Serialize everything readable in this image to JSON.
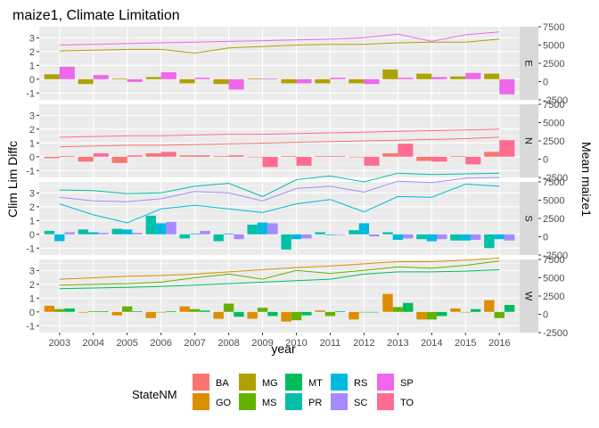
{
  "chart_data": {
    "type": "bar+line facet",
    "title": "maize1, Climate Limitation",
    "xlabel": "year",
    "ylabel_left": "Clim Lim Diffc",
    "ylabel_right": "Mean maize1",
    "x": [
      2003,
      2004,
      2005,
      2006,
      2007,
      2008,
      2009,
      2010,
      2011,
      2012,
      2013,
      2014,
      2015,
      2016
    ],
    "x_ticks": [
      "2003",
      "2004",
      "2005",
      "2006",
      "2007",
      "2008",
      "2009",
      "2010",
      "2011",
      "2012",
      "2013",
      "2014",
      "2015",
      "2016"
    ],
    "ylim_left": [
      -1.5,
      3.8
    ],
    "y_ticks_left": [
      "3",
      "2",
      "1",
      "0",
      "-1"
    ],
    "ylim_right": [
      -2500,
      7500
    ],
    "y_ticks_right": [
      "7500",
      "5000",
      "2500",
      "0",
      "-2500"
    ],
    "legend_title": "StateNM",
    "legend_position": "bottom",
    "states": [
      {
        "name": "BA",
        "color": "#F8766D"
      },
      {
        "name": "GO",
        "color": "#DB8E00"
      },
      {
        "name": "MG",
        "color": "#AEA200"
      },
      {
        "name": "MS",
        "color": "#64B200"
      },
      {
        "name": "MT",
        "color": "#00BD5C"
      },
      {
        "name": "PR",
        "color": "#00C1A7"
      },
      {
        "name": "RS",
        "color": "#00BADE"
      },
      {
        "name": "SC",
        "color": "#A58AFF"
      },
      {
        "name": "SP",
        "color": "#EF67EB"
      },
      {
        "name": "TO",
        "color": "#FF6C91"
      }
    ],
    "panels": [
      {
        "strip": "E",
        "bars": [
          {
            "state": "MG",
            "values": [
              0.35,
              -0.35,
              0.05,
              0.15,
              -0.3,
              -0.35,
              0.05,
              -0.3,
              -0.3,
              -0.3,
              0.7,
              0.4,
              0.2,
              0.4
            ]
          },
          {
            "state": "SP",
            "values": [
              0.9,
              0.3,
              -0.2,
              0.5,
              0.1,
              -0.75,
              0.05,
              -0.3,
              0.1,
              -0.35,
              0.1,
              0.15,
              0.45,
              -1.1
            ]
          }
        ],
        "lines": [
          {
            "state": "MG",
            "values": [
              4200,
              4300,
              4400,
              4400,
              3900,
              4600,
              4800,
              5000,
              5100,
              5100,
              5300,
              5400,
              5400,
              5800
            ]
          },
          {
            "state": "SP",
            "values": [
              5000,
              5100,
              5200,
              5300,
              5400,
              5500,
              5600,
              5700,
              5800,
              6000,
              6500,
              5500,
              6400,
              6800
            ]
          }
        ]
      },
      {
        "strip": "N",
        "bars": [
          {
            "state": "BA",
            "values": [
              -0.1,
              -0.35,
              -0.45,
              0.25,
              0.1,
              0.05,
              0.0,
              0.05,
              0.05,
              0.0,
              0.25,
              -0.3,
              0.05,
              0.35
            ]
          },
          {
            "state": "TO",
            "values": [
              0.05,
              0.25,
              0.1,
              0.35,
              0.1,
              0.1,
              -0.75,
              -0.65,
              0.05,
              -0.65,
              0.95,
              -0.35,
              -0.55,
              1.2
            ]
          }
        ],
        "lines": [
          {
            "state": "BA",
            "values": [
              1700,
              1800,
              1900,
              1900,
              2000,
              2100,
              2200,
              2300,
              2400,
              2500,
              2600,
              2700,
              2800,
              3000
            ]
          },
          {
            "state": "TO",
            "values": [
              3000,
              3100,
              3200,
              3200,
              3300,
              3400,
              3400,
              3500,
              3600,
              3700,
              3800,
              3900,
              4000,
              4100
            ]
          }
        ]
      },
      {
        "strip": "S",
        "bars": [
          {
            "state": "PR",
            "values": [
              0.25,
              0.35,
              0.4,
              1.35,
              -0.3,
              -0.5,
              0.7,
              -1.1,
              0.15,
              0.3,
              0.15,
              -0.35,
              -0.45,
              -1.0
            ]
          },
          {
            "state": "RS",
            "values": [
              -0.5,
              0.15,
              0.35,
              0.8,
              0.05,
              0.05,
              0.85,
              -0.35,
              -0.05,
              0.8,
              -0.4,
              -0.5,
              -0.45,
              -0.35
            ]
          },
          {
            "state": "SC",
            "values": [
              0.15,
              0.1,
              0.1,
              0.9,
              0.25,
              -0.35,
              0.8,
              -0.3,
              0.0,
              -0.15,
              -0.3,
              -0.35,
              -0.4,
              -0.45
            ]
          }
        ],
        "lines": [
          {
            "state": "PR",
            "values": [
              6400,
              6300,
              5900,
              6000,
              6900,
              7300,
              5500,
              7800,
              8300,
              7500,
              8700,
              8500,
              8600,
              8700
            ]
          },
          {
            "state": "RS",
            "values": [
              4500,
              3000,
              1900,
              3800,
              4300,
              3800,
              3300,
              4500,
              5100,
              3400,
              5500,
              5400,
              7200,
              6900
            ]
          },
          {
            "state": "SC",
            "values": [
              5400,
              4900,
              4800,
              5200,
              6200,
              6000,
              4900,
              6600,
              6900,
              6100,
              7600,
              7400,
              8000,
              8100
            ]
          }
        ]
      },
      {
        "strip": "W",
        "bars": [
          {
            "state": "GO",
            "values": [
              0.45,
              -0.05,
              -0.25,
              -0.45,
              0.4,
              -0.5,
              -0.5,
              -0.7,
              0.1,
              -0.55,
              1.3,
              -0.55,
              0.25,
              0.85
            ]
          },
          {
            "state": "MS",
            "values": [
              0.2,
              0.05,
              0.4,
              0.0,
              0.2,
              0.6,
              0.3,
              -0.6,
              -0.3,
              0.0,
              0.35,
              -0.55,
              0.0,
              -0.45
            ]
          },
          {
            "state": "MT",
            "values": [
              0.25,
              0.05,
              0.05,
              0.05,
              0.1,
              -0.35,
              -0.3,
              -0.25,
              0.05,
              0.0,
              0.65,
              -0.3,
              0.2,
              0.5
            ]
          }
        ],
        "lines": [
          {
            "state": "GO",
            "values": [
              4800,
              5000,
              5200,
              5300,
              5500,
              5800,
              6100,
              6400,
              6600,
              6900,
              7200,
              7200,
              7400,
              7700
            ]
          },
          {
            "state": "MS",
            "values": [
              4000,
              4100,
              4200,
              4400,
              5000,
              5500,
              4800,
              6000,
              5600,
              6000,
              6500,
              6300,
              6700,
              7300
            ]
          },
          {
            "state": "MT",
            "values": [
              3500,
              3600,
              3700,
              3800,
              4000,
              4200,
              4400,
              4600,
              4800,
              5500,
              5800,
              5800,
              5900,
              6100
            ]
          }
        ]
      }
    ]
  }
}
